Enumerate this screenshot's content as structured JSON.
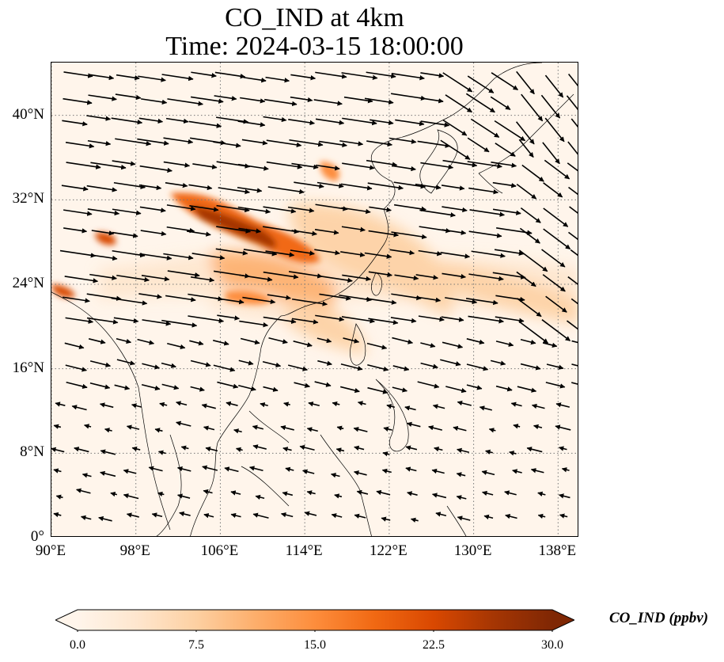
{
  "title_line1": "CO_IND at 4km",
  "title_line2": "Time: 2024-03-15 18:00:00",
  "map": {
    "lon_range": [
      90,
      140
    ],
    "lat_range": [
      0,
      45
    ],
    "x_ticks": [
      {
        "value": 90,
        "label": "90°E"
      },
      {
        "value": 98,
        "label": "98°E"
      },
      {
        "value": 106,
        "label": "106°E"
      },
      {
        "value": 114,
        "label": "114°E"
      },
      {
        "value": 122,
        "label": "122°E"
      },
      {
        "value": 130,
        "label": "130°E"
      },
      {
        "value": 138,
        "label": "138°E"
      }
    ],
    "y_ticks": [
      {
        "value": 0,
        "label": "0°"
      },
      {
        "value": 8,
        "label": "8°N"
      },
      {
        "value": 16,
        "label": "16°N"
      },
      {
        "value": 24,
        "label": "24°N"
      },
      {
        "value": 32,
        "label": "32°N"
      },
      {
        "value": 40,
        "label": "40°N"
      }
    ],
    "gridlines": true,
    "gridline_style": "dotted",
    "background_color": "#fff5eb",
    "coastline_color": "#000000",
    "arrow_color": "#000000"
  },
  "colorbar": {
    "label": "CO_IND (ppbv)",
    "min": 0.0,
    "max": 30.0,
    "extend": "both",
    "colormap": [
      "#fff5eb",
      "#fee6ce",
      "#fdd0a2",
      "#fdae6b",
      "#fd8d3c",
      "#f16913",
      "#d94801",
      "#a63603",
      "#7f2704"
    ],
    "ticks": [
      "0.0",
      "7.5",
      "15.0",
      "22.5",
      "30.0"
    ],
    "tick_values": [
      0.0,
      7.5,
      15.0,
      22.5,
      30.0
    ]
  }
}
